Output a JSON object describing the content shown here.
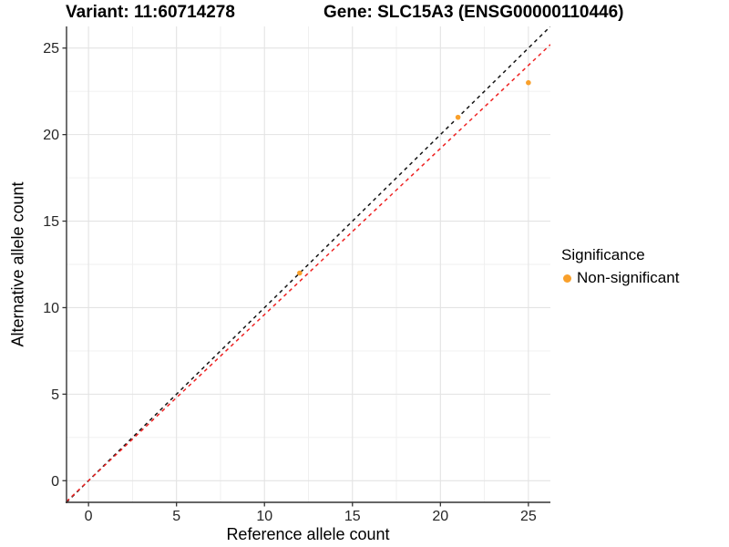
{
  "titles": {
    "variant": "Variant: 11:60714278",
    "gene": "Gene: SLC15A3 (ENSG00000110446)"
  },
  "chart_data": {
    "type": "scatter",
    "xlabel": "Reference allele count",
    "ylabel": "Alternative allele count",
    "xlim": [
      -1.25,
      26.25
    ],
    "ylim": [
      -1.25,
      26.25
    ],
    "x_ticks": [
      0,
      5,
      10,
      15,
      20,
      25
    ],
    "y_ticks": [
      0,
      5,
      10,
      15,
      20,
      25
    ],
    "x_minor_ticks": [
      2.5,
      7.5,
      12.5,
      17.5,
      22.5
    ],
    "y_minor_ticks": [
      2.5,
      7.5,
      12.5,
      17.5,
      22.5
    ],
    "grid": true,
    "series": [
      {
        "name": "Non-significant",
        "color": "#F9A02B",
        "points": [
          [
            12,
            12
          ],
          [
            21,
            21
          ],
          [
            25,
            23
          ]
        ]
      }
    ],
    "lines": [
      {
        "name": "identity-line",
        "slope": 1,
        "intercept": 0,
        "color": "#141414",
        "style": "dashed"
      },
      {
        "name": "expected-ratio-line",
        "slope": 0.96,
        "intercept": 0,
        "color": "#EE2222",
        "style": "dashed"
      }
    ],
    "legend": {
      "title": "Significance",
      "position": "right",
      "items": [
        {
          "label": "Non-significant",
          "color": "#F9A02B"
        }
      ]
    },
    "colors": {
      "axis_line": "#333333",
      "tick_label": "#262626",
      "grid_major": "#E3E3E3",
      "grid_minor": "#EFEFEF",
      "background": "#FFFFFF"
    }
  }
}
